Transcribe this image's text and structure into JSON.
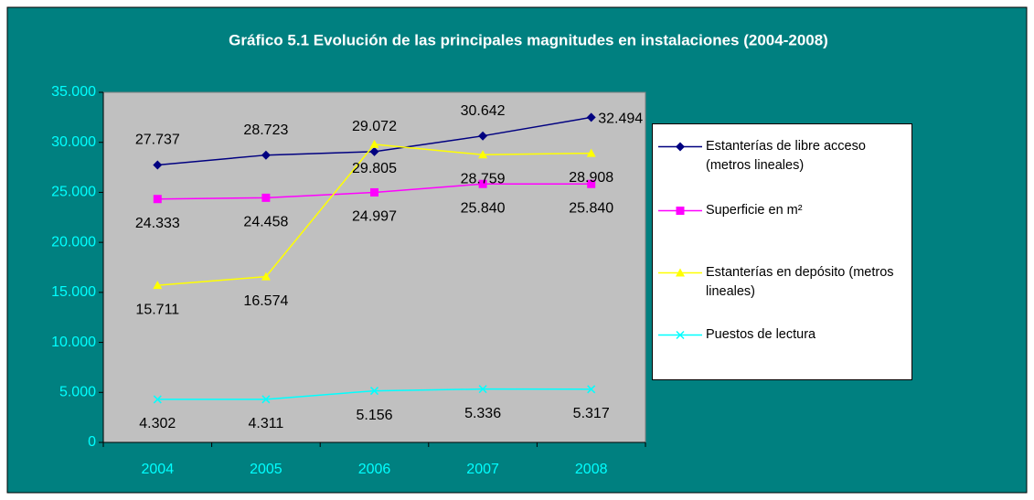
{
  "chart_data": {
    "type": "line",
    "title": "Gráfico 5.1 Evolución de las principales magnitudes en instalaciones (2004-2008)",
    "categories": [
      "2004",
      "2005",
      "2006",
      "2007",
      "2008"
    ],
    "ylim": [
      0,
      35000
    ],
    "yticks": [
      {
        "value": 0,
        "label": "0"
      },
      {
        "value": 5000,
        "label": "5.000"
      },
      {
        "value": 10000,
        "label": "10.000"
      },
      {
        "value": 15000,
        "label": "15.000"
      },
      {
        "value": 20000,
        "label": "20.000"
      },
      {
        "value": 25000,
        "label": "25.000"
      },
      {
        "value": 30000,
        "label": "30.000"
      },
      {
        "value": 35000,
        "label": "35.000"
      }
    ],
    "grid": false,
    "legend": "right",
    "series": [
      {
        "name": "Estanterías de libre acceso (metros lineales)",
        "color": "#000080",
        "marker": "diamond",
        "values": [
          27737,
          28723,
          29072,
          30642,
          32494
        ],
        "value_labels": [
          "27.737",
          "28.723",
          "29.072",
          "30.642",
          "32.494"
        ]
      },
      {
        "name": "Superficie en m²",
        "color": "#ff00ff",
        "marker": "square",
        "values": [
          24333,
          24458,
          24997,
          25840,
          25840
        ],
        "value_labels": [
          "24.333",
          "24.458",
          "24.997",
          "25.840",
          "25.840"
        ]
      },
      {
        "name": "Estanterías en depósito (metros lineales)",
        "color": "#ffff00",
        "marker": "triangle",
        "values": [
          15711,
          16574,
          29805,
          28759,
          28908
        ],
        "value_labels": [
          "15.711",
          "16.574",
          "29.805",
          "28.759",
          "28.908"
        ]
      },
      {
        "name": "Puestos de lectura",
        "color": "#00ffff",
        "marker": "x",
        "values": [
          4302,
          4311,
          5156,
          5336,
          5317
        ],
        "value_labels": [
          "4.302",
          "4.311",
          "5.156",
          "5.336",
          "5.317"
        ]
      }
    ]
  }
}
